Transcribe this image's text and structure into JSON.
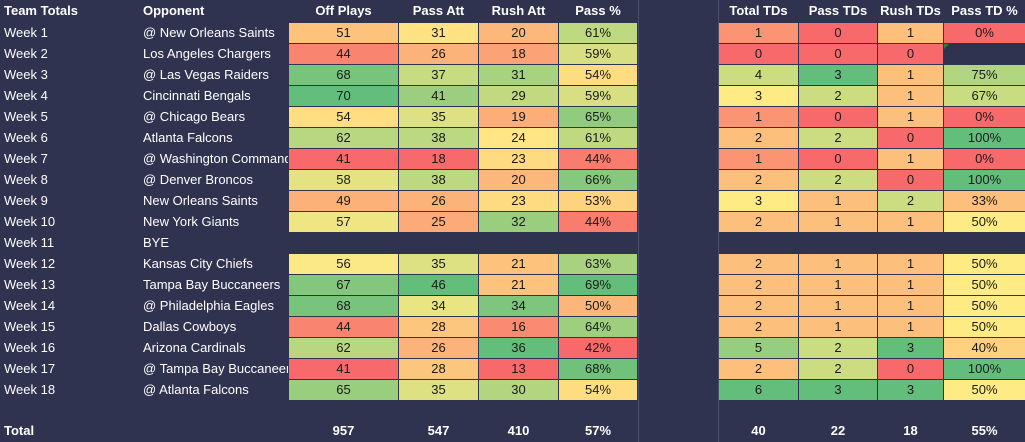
{
  "headers": {
    "week": "Team Totals",
    "opponent": "Opponent",
    "off_plays": "Off Plays",
    "pass_att": "Pass Att",
    "rush_att": "Rush Att",
    "pass_pct": "Pass %",
    "total_tds": "Total TDs",
    "pass_tds": "Pass TDs",
    "rush_tds": "Rush TDs",
    "pass_td_pct": "Pass TD %"
  },
  "rows": [
    {
      "week": "Week 1",
      "opp": "@ New Orleans Saints",
      "op": "51",
      "pa": "31",
      "ra": "20",
      "pp": "61%",
      "tt": "1",
      "pt": "0",
      "rt": "1",
      "ptp": "0%"
    },
    {
      "week": "Week 2",
      "opp": "Los Angeles Chargers",
      "op": "44",
      "pa": "26",
      "ra": "18",
      "pp": "59%",
      "tt": "0",
      "pt": "0",
      "rt": "0",
      "ptp": ""
    },
    {
      "week": "Week 3",
      "opp": "@ Las Vegas Raiders",
      "op": "68",
      "pa": "37",
      "ra": "31",
      "pp": "54%",
      "tt": "4",
      "pt": "3",
      "rt": "1",
      "ptp": "75%"
    },
    {
      "week": "Week 4",
      "opp": "Cincinnati Bengals",
      "op": "70",
      "pa": "41",
      "ra": "29",
      "pp": "59%",
      "tt": "3",
      "pt": "2",
      "rt": "1",
      "ptp": "67%"
    },
    {
      "week": "Week 5",
      "opp": "@ Chicago Bears",
      "op": "54",
      "pa": "35",
      "ra": "19",
      "pp": "65%",
      "tt": "1",
      "pt": "0",
      "rt": "1",
      "ptp": "0%"
    },
    {
      "week": "Week 6",
      "opp": "Atlanta Falcons",
      "op": "62",
      "pa": "38",
      "ra": "24",
      "pp": "61%",
      "tt": "2",
      "pt": "2",
      "rt": "0",
      "ptp": "100%"
    },
    {
      "week": "Week 7",
      "opp": "@ Washington Commanders",
      "op": "41",
      "pa": "18",
      "ra": "23",
      "pp": "44%",
      "tt": "1",
      "pt": "0",
      "rt": "1",
      "ptp": "0%"
    },
    {
      "week": "Week 8",
      "opp": "@ Denver Broncos",
      "op": "58",
      "pa": "38",
      "ra": "20",
      "pp": "66%",
      "tt": "2",
      "pt": "2",
      "rt": "0",
      "ptp": "100%"
    },
    {
      "week": "Week 9",
      "opp": "New Orleans Saints",
      "op": "49",
      "pa": "26",
      "ra": "23",
      "pp": "53%",
      "tt": "3",
      "pt": "1",
      "rt": "2",
      "ptp": "33%"
    },
    {
      "week": "Week 10",
      "opp": "New York Giants",
      "op": "57",
      "pa": "25",
      "ra": "32",
      "pp": "44%",
      "tt": "2",
      "pt": "1",
      "rt": "1",
      "ptp": "50%"
    },
    {
      "week": "Week 11",
      "opp": "BYE",
      "op": "",
      "pa": "",
      "ra": "",
      "pp": "",
      "tt": "",
      "pt": "",
      "rt": "",
      "ptp": ""
    },
    {
      "week": "Week 12",
      "opp": "Kansas City Chiefs",
      "op": "56",
      "pa": "35",
      "ra": "21",
      "pp": "63%",
      "tt": "2",
      "pt": "1",
      "rt": "1",
      "ptp": "50%"
    },
    {
      "week": "Week 13",
      "opp": "Tampa Bay Buccaneers",
      "op": "67",
      "pa": "46",
      "ra": "21",
      "pp": "69%",
      "tt": "2",
      "pt": "1",
      "rt": "1",
      "ptp": "50%"
    },
    {
      "week": "Week 14",
      "opp": "@ Philadelphia Eagles",
      "op": "68",
      "pa": "34",
      "ra": "34",
      "pp": "50%",
      "tt": "2",
      "pt": "1",
      "rt": "1",
      "ptp": "50%"
    },
    {
      "week": "Week 15",
      "opp": "Dallas Cowboys",
      "op": "44",
      "pa": "28",
      "ra": "16",
      "pp": "64%",
      "tt": "2",
      "pt": "1",
      "rt": "1",
      "ptp": "50%"
    },
    {
      "week": "Week 16",
      "opp": "Arizona Cardinals",
      "op": "62",
      "pa": "26",
      "ra": "36",
      "pp": "42%",
      "tt": "5",
      "pt": "2",
      "rt": "3",
      "ptp": "40%"
    },
    {
      "week": "Week 17",
      "opp": "@ Tampa Bay Buccaneers",
      "op": "41",
      "pa": "28",
      "ra": "13",
      "pp": "68%",
      "tt": "2",
      "pt": "2",
      "rt": "0",
      "ptp": "100%"
    },
    {
      "week": "Week 18",
      "opp": "@ Atlanta Falcons",
      "op": "65",
      "pa": "35",
      "ra": "30",
      "pp": "54%",
      "tt": "6",
      "pt": "3",
      "rt": "3",
      "ptp": "50%"
    }
  ],
  "totals": {
    "label": "Total",
    "op": "957",
    "pa": "547",
    "ra": "410",
    "pp": "57%",
    "tt": "40",
    "pt": "22",
    "rt": "18",
    "ptp": "55%"
  },
  "colors": {
    "background": "#2f3350",
    "red": "#f8696b",
    "orange": "#fbaa77",
    "yellow": "#ffeb84",
    "light_green": "#b1d580",
    "green": "#63be7b"
  }
}
